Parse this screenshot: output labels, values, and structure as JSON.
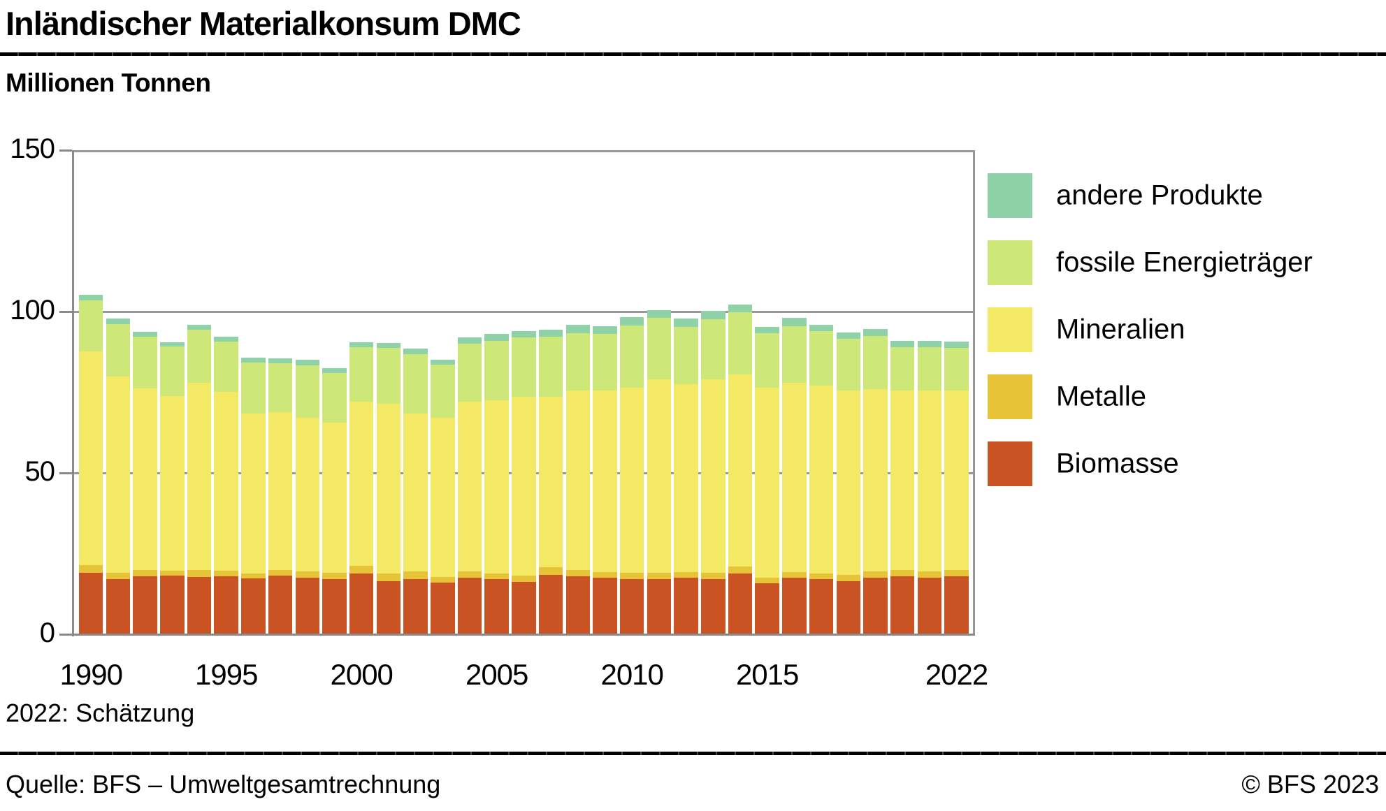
{
  "header": {
    "title": "Inländischer Materialkonsum DMC",
    "unit_label": "Millionen Tonnen"
  },
  "chart_data": {
    "type": "bar",
    "stacked": true,
    "title": "Inländischer Materialkonsum DMC",
    "ylabel": "Millionen Tonnen",
    "ylim": [
      0,
      150
    ],
    "yticks": [
      "0",
      "50",
      "100",
      "150"
    ],
    "xtick_years": [
      1990,
      1995,
      2000,
      2005,
      2010,
      2015,
      2022
    ],
    "grid": true,
    "legend_position": "right",
    "years": [
      1990,
      1991,
      1992,
      1993,
      1994,
      1995,
      1996,
      1997,
      1998,
      1999,
      2000,
      2001,
      2002,
      2003,
      2004,
      2005,
      2006,
      2007,
      2008,
      2009,
      2010,
      2011,
      2012,
      2013,
      2014,
      2015,
      2016,
      2017,
      2018,
      2019,
      2020,
      2021,
      2022
    ],
    "series": [
      {
        "name": "Biomasse",
        "color": "#C95323",
        "values": [
          19.1,
          17.1,
          18.0,
          18.2,
          17.7,
          17.9,
          17.3,
          18.2,
          17.5,
          17.1,
          18.8,
          16.5,
          17.2,
          16.0,
          17.5,
          17.0,
          16.3,
          18.5,
          18.0,
          17.5,
          17.0,
          17.0,
          17.5,
          17.0,
          18.8,
          15.8,
          17.5,
          17.0,
          16.5,
          17.5,
          18.0,
          17.5,
          18.0
        ]
      },
      {
        "name": "Metalle",
        "color": "#E7C337",
        "values": [
          2.3,
          1.9,
          2.0,
          1.5,
          2.2,
          1.8,
          1.5,
          1.7,
          2.0,
          1.9,
          2.4,
          2.3,
          2.3,
          1.8,
          2.0,
          1.8,
          1.8,
          2.2,
          2.0,
          1.8,
          2.0,
          2.0,
          1.8,
          2.0,
          2.2,
          1.8,
          1.8,
          1.8,
          1.8,
          2.0,
          2.0,
          2.0,
          2.0
        ]
      },
      {
        "name": "Mineralien",
        "color": "#F3E964",
        "values": [
          66.2,
          60.9,
          56.1,
          54.1,
          58.1,
          55.5,
          49.5,
          49.0,
          47.5,
          46.5,
          50.8,
          52.7,
          49.0,
          49.2,
          52.5,
          53.7,
          55.4,
          52.8,
          55.5,
          56.2,
          57.5,
          60.0,
          58.2,
          60.0,
          59.5,
          58.9,
          58.7,
          58.2,
          57.2,
          56.5,
          55.5,
          56.0,
          55.5
        ]
      },
      {
        "name": "fossile Energieträger",
        "color": "#CDE878",
        "values": [
          15.9,
          16.2,
          16.1,
          15.3,
          16.3,
          15.5,
          15.9,
          15.0,
          16.4,
          15.4,
          16.9,
          17.2,
          18.4,
          16.6,
          18.0,
          18.5,
          18.4,
          18.8,
          17.8,
          17.5,
          19.2,
          19.0,
          17.8,
          18.7,
          19.2,
          16.7,
          17.5,
          17.0,
          16.0,
          16.5,
          13.5,
          13.5,
          13.3
        ]
      },
      {
        "name": "andere Produkte",
        "color": "#8FD2A8",
        "values": [
          1.6,
          1.7,
          1.6,
          1.4,
          1.6,
          1.6,
          1.6,
          1.6,
          1.6,
          1.5,
          1.6,
          1.6,
          1.6,
          1.5,
          2.0,
          2.0,
          2.0,
          2.0,
          2.5,
          2.5,
          2.5,
          2.5,
          2.5,
          2.5,
          2.5,
          2.0,
          2.5,
          2.0,
          2.0,
          2.0,
          2.0,
          2.0,
          2.0
        ]
      }
    ]
  },
  "legend": {
    "items": [
      {
        "label": "andere Produkte",
        "color": "#8FD2A8"
      },
      {
        "label": "fossile Energieträger",
        "color": "#CDE878"
      },
      {
        "label": "Mineralien",
        "color": "#F3E964"
      },
      {
        "label": "Metalle",
        "color": "#E7C337"
      },
      {
        "label": "Biomasse",
        "color": "#C95323"
      }
    ]
  },
  "footnote": "2022: Schätzung",
  "footer": {
    "source": "Quelle: BFS – Umweltgesamtrechnung",
    "copyright": "© BFS 2023"
  }
}
